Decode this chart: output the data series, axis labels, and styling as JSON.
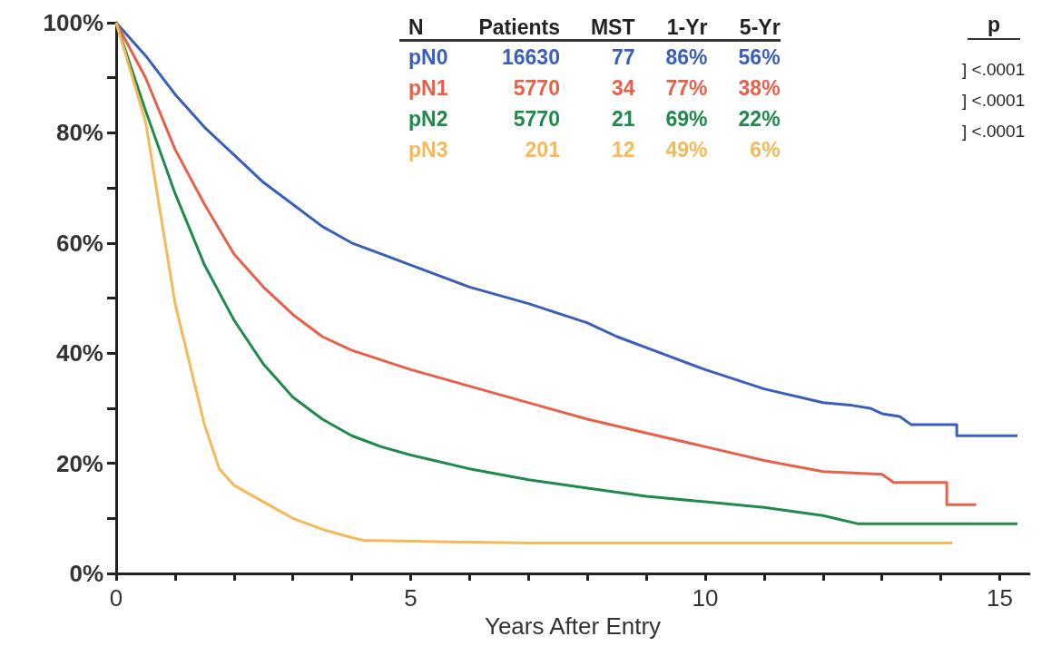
{
  "chart_data": {
    "type": "line",
    "xlabel": "Years After Entry",
    "xlim": [
      0,
      15.5
    ],
    "ylim": [
      0,
      100
    ],
    "xticks": [
      0,
      {
        "value": 1,
        "label": null
      },
      {
        "value": 2,
        "label": null
      },
      {
        "value": 3,
        "label": null
      },
      {
        "value": 4,
        "label": null
      },
      5,
      {
        "value": 6,
        "label": null
      },
      {
        "value": 7,
        "label": null
      },
      {
        "value": 8,
        "label": null
      },
      {
        "value": 9,
        "label": null
      },
      10,
      {
        "value": 11,
        "label": null
      },
      {
        "value": 12,
        "label": null
      },
      {
        "value": 13,
        "label": null
      },
      {
        "value": 14,
        "label": null
      },
      15
    ],
    "yticks": [
      {
        "value": 0,
        "label": "0%"
      },
      {
        "value": 10,
        "label": null
      },
      {
        "value": 20,
        "label": "20%"
      },
      {
        "value": 30,
        "label": null
      },
      {
        "value": 40,
        "label": "40%"
      },
      {
        "value": 50,
        "label": null
      },
      {
        "value": 60,
        "label": "60%"
      },
      {
        "value": 70,
        "label": null
      },
      {
        "value": 80,
        "label": "80%"
      },
      {
        "value": 90,
        "label": null
      },
      {
        "value": 100,
        "label": "100%"
      }
    ],
    "grid": false,
    "legend": false,
    "marker": "none",
    "line_style": "solid",
    "series": [
      {
        "name": "pN0",
        "color": "#3a5fb8",
        "x": [
          0,
          0.5,
          1,
          1.5,
          2,
          2.5,
          3,
          3.5,
          4,
          4.5,
          5,
          6,
          7,
          8,
          8.5,
          9,
          10,
          11,
          12,
          12.5,
          12.8,
          13,
          13.3,
          13.5,
          14.27,
          14.27,
          15.3
        ],
        "values": [
          100,
          94,
          87,
          81,
          76,
          71,
          67,
          63,
          60,
          58,
          56,
          52,
          49,
          45.5,
          43,
          41,
          37,
          33.5,
          31,
          30.5,
          30,
          29,
          28.5,
          27,
          27,
          25,
          25
        ]
      },
      {
        "name": "pN1",
        "color": "#e8604a",
        "x": [
          0,
          0.5,
          1,
          1.5,
          2,
          2.5,
          3,
          3.5,
          4,
          5,
          6,
          7,
          8,
          9,
          10,
          11,
          12,
          13,
          13.2,
          14.1,
          14.1,
          14.6
        ],
        "values": [
          100,
          90,
          77,
          67,
          58,
          52,
          47,
          43,
          40.5,
          37,
          34,
          31,
          28,
          25.5,
          23,
          20.5,
          18.5,
          18,
          16.5,
          16.5,
          12.5,
          12.5
        ]
      },
      {
        "name": "pN2",
        "color": "#1f8a4c",
        "x": [
          0,
          0.5,
          1,
          1.5,
          2,
          2.5,
          3,
          3.5,
          4,
          4.5,
          5,
          6,
          7,
          8,
          9,
          10,
          11,
          12,
          12.6,
          15.3
        ],
        "values": [
          100,
          84,
          69,
          56,
          46,
          38,
          32,
          28,
          25,
          23,
          21.5,
          19,
          17,
          15.5,
          14,
          13,
          12,
          10.5,
          9,
          9
        ]
      },
      {
        "name": "pN3",
        "color": "#f5b95a",
        "x": [
          0,
          0.5,
          1,
          1.25,
          1.5,
          1.75,
          2,
          2.5,
          3,
          3.5,
          4,
          4.2,
          7,
          14.2
        ],
        "values": [
          100,
          82,
          49,
          38,
          27,
          19,
          16,
          13,
          10,
          8,
          6.5,
          6,
          5.5,
          5.5
        ]
      }
    ],
    "annotations": [
      "N",
      "Patients",
      "MST",
      "1-Yr",
      "5-Yr",
      "16630",
      "77",
      "86%",
      "56%",
      "5770",
      "34",
      "77%",
      "38%",
      "5770",
      "21",
      "69%",
      "22%",
      "201",
      "12",
      "49%",
      "6%",
      "p",
      "] <.0001",
      "] <.0001",
      "] <.0001"
    ]
  }
}
